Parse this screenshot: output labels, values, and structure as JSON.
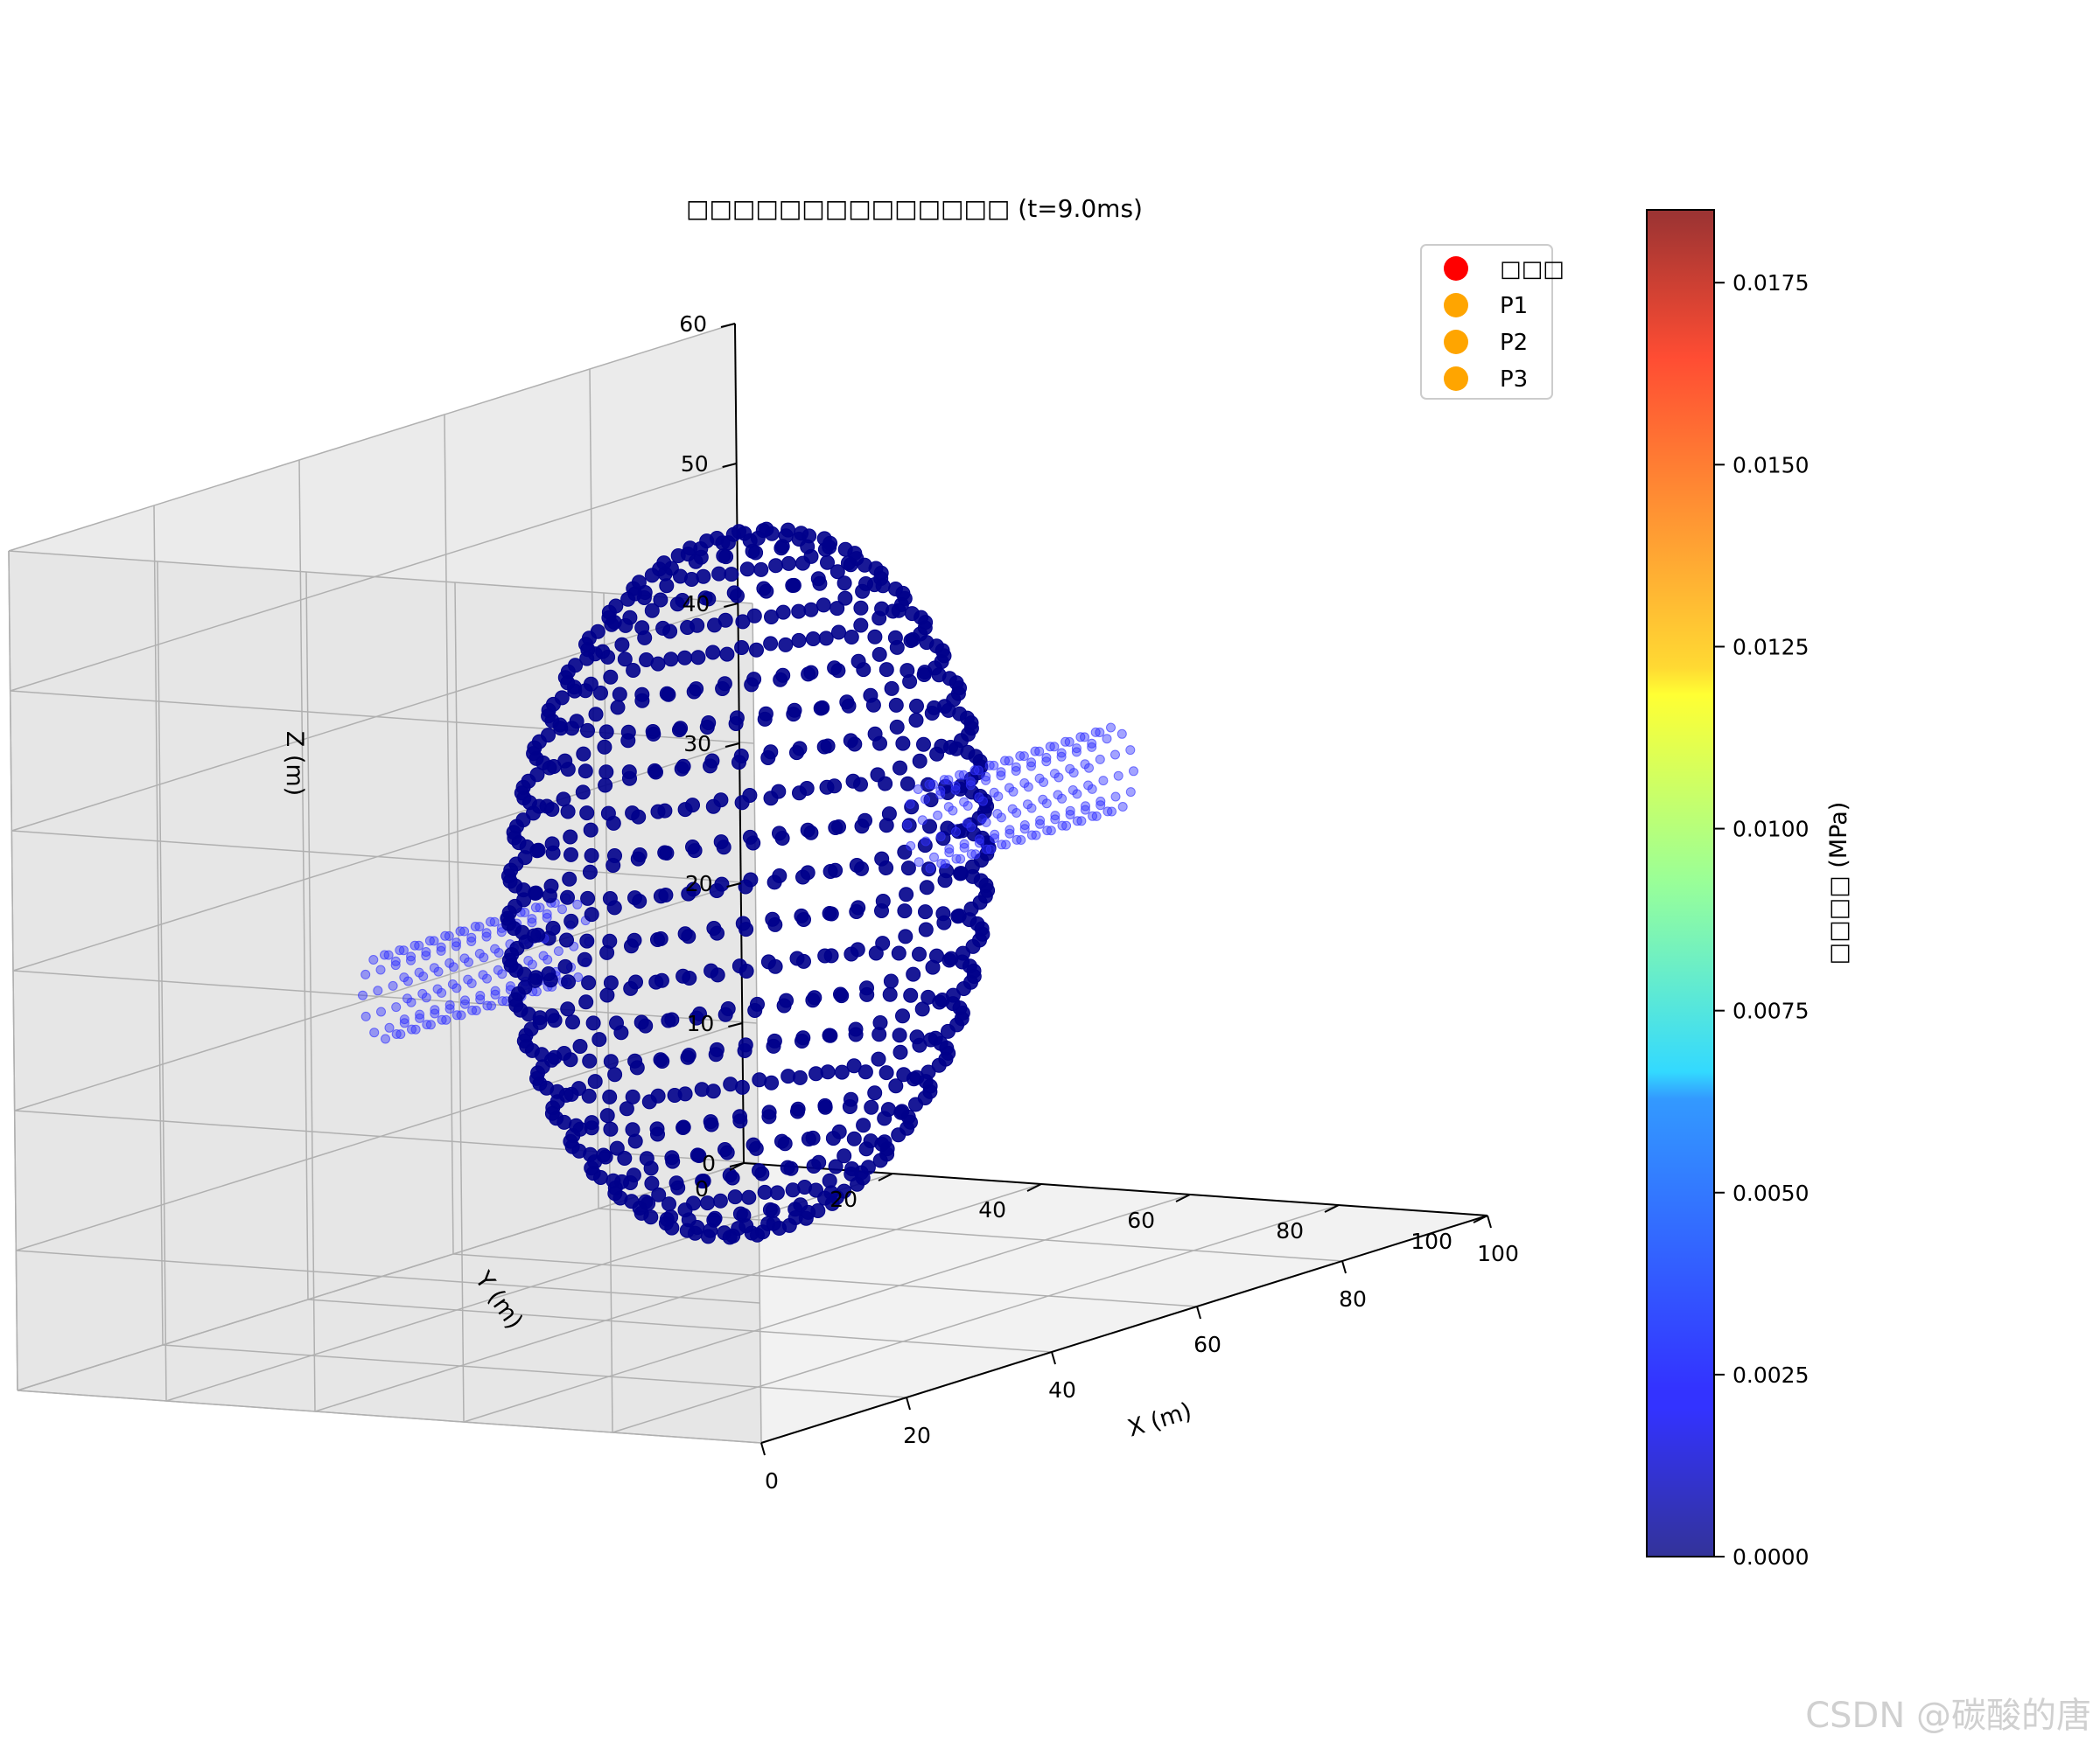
{
  "chart_data": {
    "type": "scatter",
    "projection": "3d",
    "title": "□□□□□□□□□□□□□□ (t=9.0ms)",
    "xlabel": "X (m)",
    "ylabel": "Y (m)",
    "zlabel": "Z (m)",
    "xlim": [
      0,
      100
    ],
    "ylim": [
      0,
      100
    ],
    "zlim": [
      0,
      60
    ],
    "x_ticks": [
      "0",
      "20",
      "40",
      "60",
      "80",
      "100"
    ],
    "y_ticks": [
      "0",
      "20",
      "40",
      "60",
      "80",
      "100"
    ],
    "z_ticks": [
      "0",
      "10",
      "20",
      "30",
      "40",
      "50",
      "60"
    ],
    "grid": true,
    "legend_position": "top-right",
    "legend": [
      {
        "label": "□□□",
        "color": "#ff0000"
      },
      {
        "label": "P1",
        "color": "#ffa500"
      },
      {
        "label": "P2",
        "color": "#ffa500"
      },
      {
        "label": "P3",
        "color": "#ffa500"
      }
    ],
    "colorbar": {
      "label": "□□□□ (MPa)",
      "colormap": "jet",
      "range": [
        0,
        0.0185
      ],
      "ticks": [
        "0.0000",
        "0.0025",
        "0.0050",
        "0.0075",
        "0.0100",
        "0.0125",
        "0.0150",
        "0.0175"
      ],
      "tick_values": [
        0,
        0.0025,
        0.005,
        0.0075,
        0.01,
        0.0125,
        0.015,
        0.0175
      ]
    },
    "series": [
      {
        "kind": "sphere",
        "center": [
          50,
          50,
          30
        ],
        "radius": 25,
        "color": "#00008b",
        "value_MPa": 0.0
      },
      {
        "kind": "pipe",
        "from": [
          0,
          50,
          30
        ],
        "to": [
          25,
          50,
          30
        ],
        "radius": 3,
        "color": "#3333ff",
        "value_MPa": 0.0
      },
      {
        "kind": "pipe",
        "from": [
          75,
          50,
          30
        ],
        "to": [
          100,
          50,
          30
        ],
        "radius": 3,
        "color": "#3333ff",
        "value_MPa": 0.0
      }
    ]
  },
  "watermark": "CSDN @碳酸的唐"
}
